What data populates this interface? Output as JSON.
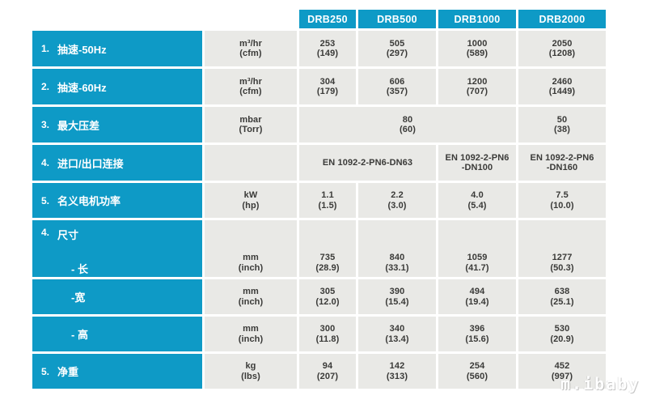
{
  "colors": {
    "teal": "#0E9AC6",
    "cell_gray": "#E9E9E6",
    "text_dark": "#3A3A38",
    "header_text": "#FFFFFF"
  },
  "table": {
    "column_headers": [
      "DRB250",
      "DRB500",
      "DRB1000",
      "DRB2000"
    ],
    "rows": {
      "pumping_speed_50hz": {
        "num": "1.",
        "label": "抽速-50Hz",
        "unit": [
          "m³/hr",
          "(cfm)"
        ],
        "values": [
          [
            "253",
            "(149)"
          ],
          [
            "505",
            "(297)"
          ],
          [
            "1000",
            "(589)"
          ],
          [
            "2050",
            "(1208)"
          ]
        ]
      },
      "pumping_speed_60hz": {
        "num": "2.",
        "label": "抽速-60Hz",
        "unit": [
          "m³/hr",
          "(cfm)"
        ],
        "values": [
          [
            "304",
            "(179)"
          ],
          [
            "606",
            "(357)"
          ],
          [
            "1200",
            "(707)"
          ],
          [
            "2460",
            "(1449)"
          ]
        ]
      },
      "max_pressure_diff": {
        "num": "3.",
        "label": "最大压差",
        "unit": [
          "mbar",
          "(Torr)"
        ],
        "merged_value": [
          "80",
          "(60)"
        ],
        "v4": [
          "50",
          "(38)"
        ]
      },
      "inlet_outlet_connection": {
        "num": "4.",
        "label": "进口/出口连接",
        "merged_value": "EN 1092-2-PN6-DN63",
        "v3": [
          "EN 1092-2-PN6",
          "-DN100"
        ],
        "v4": [
          "EN 1092-2-PN6",
          "-DN160"
        ]
      },
      "nominal_motor_power": {
        "num": "5.",
        "label": "名义电机功率",
        "unit": [
          "kW",
          "(hp)"
        ],
        "values": [
          [
            "1.1",
            "(1.5)"
          ],
          [
            "2.2",
            "(3.0)"
          ],
          [
            "4.0",
            "(5.4)"
          ],
          [
            "7.5",
            "(10.0)"
          ]
        ]
      },
      "dimensions_length": {
        "num": "4.",
        "label": "尺寸",
        "sub_label": "- 长",
        "unit": [
          "mm",
          "(inch)"
        ],
        "values": [
          [
            "735",
            "(28.9)"
          ],
          [
            "840",
            "(33.1)"
          ],
          [
            "1059",
            "(41.7)"
          ],
          [
            "1277",
            "(50.3)"
          ]
        ]
      },
      "dimensions_width": {
        "sub_label": "-宽",
        "unit": [
          "mm",
          "(inch)"
        ],
        "values": [
          [
            "305",
            "(12.0)"
          ],
          [
            "390",
            "(15.4)"
          ],
          [
            "494",
            "(19.4)"
          ],
          [
            "638",
            "(25.1)"
          ]
        ]
      },
      "dimensions_height": {
        "sub_label": "- 高",
        "unit": [
          "mm",
          "(inch)"
        ],
        "values": [
          [
            "300",
            "(11.8)"
          ],
          [
            "340",
            "(13.4)"
          ],
          [
            "396",
            "(15.6)"
          ],
          [
            "530",
            "(20.9)"
          ]
        ]
      },
      "net_weight": {
        "num": "5.",
        "label": "净重",
        "unit": [
          "kg",
          "(lbs)"
        ],
        "values": [
          [
            "94",
            "(207)"
          ],
          [
            "142",
            "(313)"
          ],
          [
            "254",
            "(560)"
          ],
          [
            "452",
            "(997)"
          ]
        ]
      }
    }
  },
  "watermark": {
    "text": "m.ibaby"
  }
}
